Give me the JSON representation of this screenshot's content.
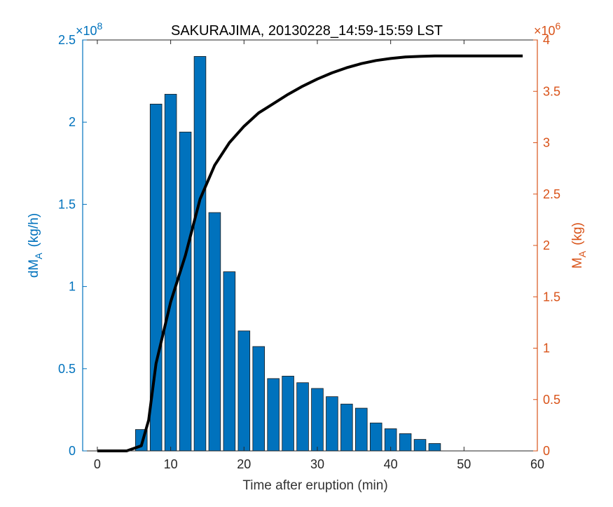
{
  "chart_data": {
    "type": "bar",
    "title": "SAKURAJIMA, 20130228_14:59-15:59 LST",
    "xlabel": "Time after eruption (min)",
    "ylabel_left": {
      "main": "dM",
      "sub": "A",
      "unit": "(kg/h)"
    },
    "ylabel_right": {
      "main": "M",
      "sub": "A",
      "unit": "(kg)"
    },
    "left_exponent": {
      "prefix": "×10",
      "power": "8"
    },
    "right_exponent": {
      "prefix": "×10",
      "power": "6"
    },
    "xlim": [
      -2,
      60
    ],
    "ylim_left": [
      0,
      2.5
    ],
    "ylim_right": [
      0,
      4
    ],
    "x_ticks": [
      "0",
      "10",
      "20",
      "30",
      "40",
      "50",
      "60"
    ],
    "left_ticks": [
      "0",
      "0.5",
      "1",
      "1.5",
      "2",
      "2.5"
    ],
    "right_ticks": [
      "0",
      "0.5",
      "1",
      "1.5",
      "2",
      "2.5",
      "3",
      "3.5",
      "4"
    ],
    "colors": {
      "bar": "#0072BD",
      "left_axis": "#0072BD",
      "right_axis": "#D95319",
      "line": "#000000"
    },
    "series": [
      {
        "name": "dM_A",
        "axis": "left",
        "type": "bar",
        "x": [
          6,
          8,
          10,
          12,
          14,
          16,
          18,
          20,
          22,
          24,
          26,
          28,
          30,
          32,
          34,
          36,
          38,
          40,
          42,
          44,
          46
        ],
        "values": [
          0.13,
          2.11,
          2.17,
          1.94,
          2.4,
          1.45,
          1.09,
          0.73,
          0.635,
          0.44,
          0.455,
          0.415,
          0.38,
          0.33,
          0.285,
          0.26,
          0.17,
          0.135,
          0.105,
          0.07,
          0.045
        ]
      },
      {
        "name": "M_A",
        "axis": "right",
        "type": "line",
        "x": [
          0,
          4,
          6,
          7,
          8,
          10,
          12,
          14,
          16,
          18,
          20,
          22,
          24,
          26,
          28,
          30,
          32,
          34,
          36,
          38,
          40,
          42,
          44,
          46,
          48,
          50,
          52,
          54,
          56,
          58
        ],
        "values": [
          0,
          0,
          0.05,
          0.3,
          0.85,
          1.45,
          1.9,
          2.45,
          2.78,
          3.0,
          3.16,
          3.29,
          3.38,
          3.47,
          3.55,
          3.62,
          3.68,
          3.73,
          3.77,
          3.8,
          3.82,
          3.835,
          3.84,
          3.845,
          3.845,
          3.845,
          3.845,
          3.845,
          3.845,
          3.845
        ]
      }
    ]
  }
}
